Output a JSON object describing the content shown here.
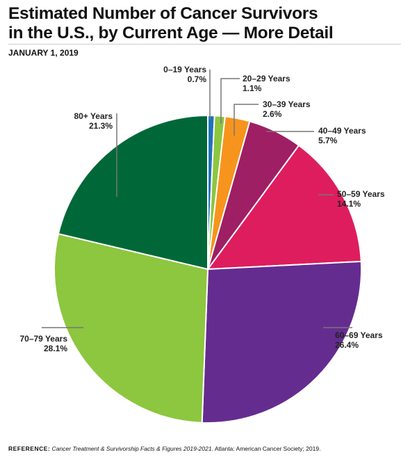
{
  "chart_data": {
    "type": "pie",
    "title": "Estimated Number of Cancer Survivors in the U.S., by Current Age — More Detail",
    "title_lines": [
      "Estimated Number of Cancer Survivors",
      "in the U.S., by Current Age — More Detail"
    ],
    "subtitle": "JANUARY 1, 2019",
    "slices": [
      {
        "label": "0–19 Years",
        "value": 0.7,
        "value_label": "0.7%",
        "color": "#1f73b7"
      },
      {
        "label": "20–29 Years",
        "value": 1.1,
        "value_label": "1.1%",
        "color": "#8dc63f"
      },
      {
        "label": "30–39 Years",
        "value": 2.6,
        "value_label": "2.6%",
        "color": "#f7941d"
      },
      {
        "label": "40–49 Years",
        "value": 5.7,
        "value_label": "5.7%",
        "color": "#9e1f63"
      },
      {
        "label": "50–59 Years",
        "value": 14.1,
        "value_label": "14.1%",
        "color": "#de1d5e"
      },
      {
        "label": "60–69 Years",
        "value": 26.4,
        "value_label": "26.4%",
        "color": "#652c90"
      },
      {
        "label": "70–79 Years",
        "value": 28.1,
        "value_label": "28.1%",
        "color": "#8dc63f"
      },
      {
        "label": "80+ Years",
        "value": 21.3,
        "value_label": "21.3%",
        "color": "#006838"
      }
    ],
    "start": "12 o'clock",
    "direction": "clockwise"
  },
  "reference": {
    "label": "REFERENCE:",
    "title": "Cancer Treatment & Survivorship Facts & Figures 2019-2021",
    "rest": ". Atlanta: American Cancer Society; 2019."
  }
}
